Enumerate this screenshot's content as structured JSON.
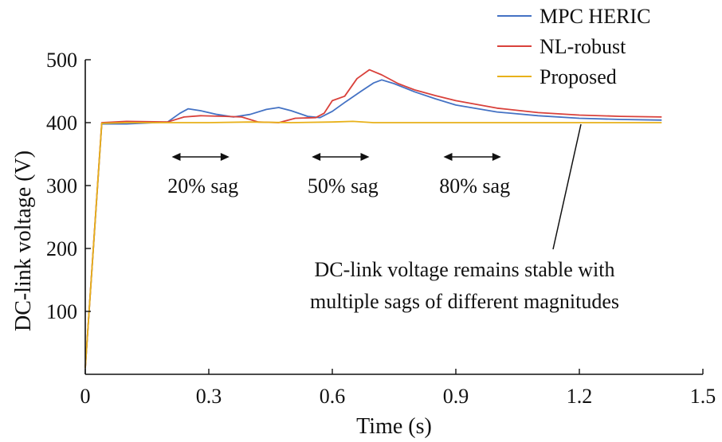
{
  "chart_data": {
    "type": "line",
    "title": "",
    "xlabel": "Time (s)",
    "ylabel": "DC-link voltage (V)",
    "xlim": [
      0,
      1.5
    ],
    "ylim": [
      0,
      500
    ],
    "xticks": [
      0,
      0.3,
      0.6,
      0.9,
      1.2,
      1.5
    ],
    "xtick_labels": [
      "0",
      "0.3",
      "0.6",
      "0.9",
      "1.2",
      "1.5"
    ],
    "yticks": [
      100,
      200,
      300,
      400,
      500
    ],
    "ytick_labels": [
      "100",
      "200",
      "300",
      "400",
      "500"
    ],
    "grid": false,
    "legend_position": "top-right",
    "series": [
      {
        "name": "MPC HERIC",
        "color": "#4472c4",
        "x": [
          0,
          0.04,
          0.1,
          0.2,
          0.23,
          0.25,
          0.28,
          0.32,
          0.36,
          0.4,
          0.44,
          0.47,
          0.5,
          0.54,
          0.57,
          0.6,
          0.63,
          0.67,
          0.7,
          0.72,
          0.75,
          0.8,
          0.85,
          0.9,
          1.0,
          1.1,
          1.2,
          1.3,
          1.4
        ],
        "y": [
          10,
          398,
          398,
          401,
          415,
          422,
          419,
          413,
          409,
          413,
          421,
          424,
          419,
          410,
          408,
          418,
          432,
          450,
          463,
          468,
          462,
          449,
          438,
          428,
          417,
          411,
          407,
          405,
          404
        ]
      },
      {
        "name": "NL-robust",
        "color": "#d9413b",
        "x": [
          0,
          0.04,
          0.1,
          0.2,
          0.24,
          0.28,
          0.34,
          0.38,
          0.42,
          0.47,
          0.51,
          0.56,
          0.58,
          0.6,
          0.63,
          0.66,
          0.69,
          0.72,
          0.76,
          0.8,
          0.85,
          0.9,
          1.0,
          1.1,
          1.2,
          1.3,
          1.4
        ],
        "y": [
          10,
          400,
          402,
          401,
          409,
          411,
          410,
          409,
          401,
          400,
          407,
          408,
          415,
          435,
          442,
          470,
          484,
          476,
          462,
          452,
          443,
          435,
          423,
          416,
          412,
          410,
          409
        ]
      },
      {
        "name": "Proposed",
        "color": "#e8b11a",
        "x": [
          0,
          0.04,
          0.1,
          0.2,
          0.3,
          0.4,
          0.5,
          0.6,
          0.65,
          0.7,
          0.8,
          0.9,
          1.0,
          1.1,
          1.2,
          1.3,
          1.4
        ],
        "y": [
          10,
          399,
          400,
          400,
          400,
          401,
          400,
          401,
          402,
          400,
          400,
          400,
          400,
          400,
          400,
          400,
          400
        ]
      }
    ],
    "annotations": [
      {
        "text": "20% sag",
        "x_range": [
          0.21,
          0.35
        ]
      },
      {
        "text": "50% sag",
        "x_range": [
          0.55,
          0.69
        ]
      },
      {
        "text": "80% sag",
        "x_range": [
          0.87,
          1.01
        ]
      }
    ],
    "callout": {
      "line1": "DC-link voltage remains stable with",
      "line2": "multiple sags of different magnitudes",
      "target": [
        1.2,
        400
      ]
    }
  }
}
